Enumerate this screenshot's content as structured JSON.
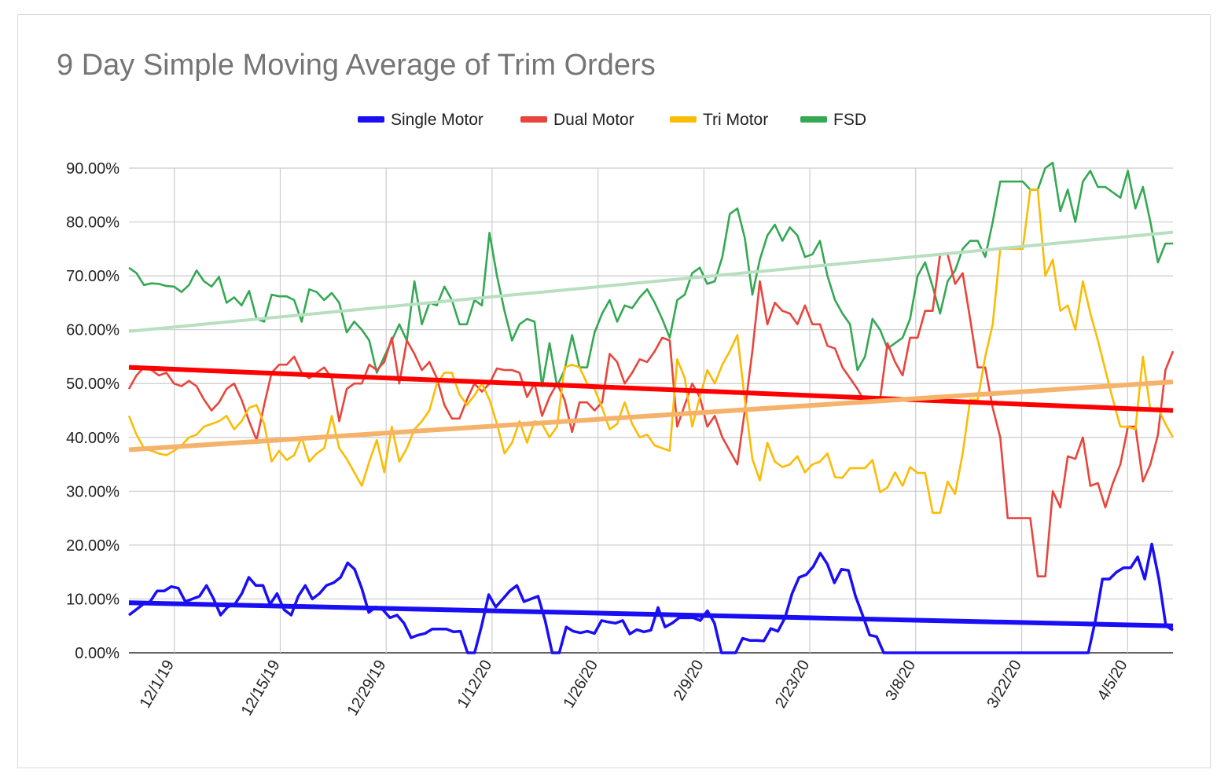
{
  "chart_data": {
    "type": "line",
    "title": "9 Day Simple Moving Average of Trim Orders",
    "xlabel": "",
    "ylabel": "",
    "ylim": [
      0,
      90
    ],
    "yticks": [
      "0.00%",
      "10.00%",
      "20.00%",
      "30.00%",
      "40.00%",
      "50.00%",
      "60.00%",
      "70.00%",
      "80.00%",
      "90.00%"
    ],
    "xticks": [
      "12/1/19",
      "12/15/19",
      "12/29/19",
      "1/12/20",
      "1/26/20",
      "2/9/20",
      "2/23/20",
      "3/8/20",
      "3/22/20",
      "4/5/20"
    ],
    "x_start": "11/25/19",
    "x_end": "4/11/20",
    "grid": true,
    "legend": "top",
    "series": [
      {
        "name": "Single Motor",
        "color": "#1a0ef5",
        "values": [
          7,
          8,
          9,
          9.5,
          11.5,
          11.5,
          12.3,
          12,
          9.5,
          10,
          10.5,
          12.5,
          10,
          7,
          8.5,
          9,
          11,
          14,
          12.5,
          12.5,
          9,
          11,
          8,
          7,
          10.5,
          12.5,
          10,
          11,
          12.5,
          13,
          14,
          16.7,
          15.5,
          12,
          7.5,
          8.5,
          8,
          6.5,
          7,
          5.5,
          2.8,
          3.3,
          3.6,
          4.4,
          4.4,
          4.4,
          3.9,
          4,
          0,
          0,
          5,
          10.8,
          8.5,
          10,
          11.5,
          12.5,
          9.5,
          10,
          10.5,
          6,
          0,
          0,
          4.8,
          4,
          3.7,
          4,
          3.6,
          6,
          5.7,
          5.5,
          6,
          3.5,
          4.3,
          3.9,
          4.2,
          8.4,
          4.8,
          5.5,
          6.5,
          6.5,
          6.5,
          6,
          7.8,
          5.5,
          0,
          0,
          0,
          2.7,
          2.3,
          2.3,
          2.2,
          4.5,
          4,
          6.5,
          11,
          14,
          14.5,
          16,
          18.5,
          16.5,
          13,
          15.5,
          15.3,
          10.5,
          7,
          3.3,
          3,
          0,
          0,
          0,
          0,
          0,
          0,
          0,
          0,
          0,
          0,
          0,
          0,
          0,
          0,
          0,
          0,
          0,
          0,
          0,
          0,
          0,
          0,
          0,
          0,
          0,
          0,
          0,
          0,
          0,
          0,
          6,
          13.7,
          13.7,
          15,
          15.8,
          15.8,
          17.8,
          13.7,
          20.2,
          13.7,
          5,
          4.2
        ]
      },
      {
        "name": "Dual Motor",
        "color": "#e8453c",
        "values": [
          49,
          51.5,
          53,
          52.5,
          51.5,
          52,
          50,
          49.5,
          50.5,
          49.5,
          47,
          45,
          46.5,
          49,
          50,
          47,
          43,
          39.5,
          46,
          52,
          53.5,
          53.5,
          55,
          52,
          51,
          52,
          53,
          51,
          43,
          49,
          50,
          50,
          53.5,
          52.5,
          54,
          58.5,
          50,
          58,
          55.5,
          52.5,
          54,
          51,
          46,
          43.5,
          43.5,
          47,
          50,
          48.5,
          50,
          52.8,
          52.5,
          52.5,
          52,
          47.5,
          50,
          44,
          47.5,
          50,
          47,
          41,
          46.5,
          46.5,
          45,
          46.5,
          55.5,
          54,
          50,
          52,
          54.5,
          54,
          56,
          58.5,
          58,
          42,
          46,
          50,
          47.5,
          42,
          44,
          40,
          37.5,
          35,
          45,
          56,
          69,
          61,
          65,
          63.5,
          63,
          61,
          64.5,
          61,
          61,
          57,
          56.5,
          53,
          51,
          49,
          46.5,
          47.5,
          47,
          57.5,
          54,
          51.5,
          58.5,
          58.5,
          63.5,
          63.5,
          74,
          74,
          68.5,
          70.5,
          62,
          53,
          53,
          45.5,
          40,
          25,
          25,
          25,
          25,
          14.2,
          14.2,
          30,
          27,
          36.5,
          36,
          40,
          31,
          31.5,
          27,
          31.5,
          35,
          42,
          42,
          31.8,
          35,
          40.5,
          52.5,
          56
        ]
      },
      {
        "name": "Tri Motor",
        "color": "#fbbc05",
        "values": [
          44,
          40.5,
          38,
          37.5,
          37,
          36.7,
          37.5,
          38.5,
          40,
          40.5,
          42,
          42.5,
          43,
          44,
          41.5,
          43,
          45.5,
          46,
          42.5,
          35.5,
          37.5,
          35.8,
          36.7,
          40,
          35.5,
          37,
          38,
          44,
          38,
          36,
          33.5,
          31,
          35.5,
          39.5,
          33.5,
          42,
          35.5,
          38,
          41.5,
          43,
          45,
          50,
          52,
          52,
          48,
          46,
          47.8,
          50,
          47,
          42.5,
          37,
          39,
          43,
          39,
          43,
          42.5,
          40,
          42,
          53,
          53.5,
          53,
          50,
          49,
          45.5,
          41.5,
          42.5,
          46.5,
          42.5,
          40,
          40.5,
          38.5,
          38,
          37.5,
          54.5,
          51,
          42,
          47.5,
          52.5,
          50,
          53.5,
          56,
          59,
          47,
          36,
          32,
          39,
          35.5,
          34.5,
          35,
          36.5,
          33.5,
          35,
          35.5,
          37,
          32.6,
          32.5,
          34.3,
          34.3,
          34.3,
          35.8,
          29.8,
          30.7,
          33.5,
          31,
          34.5,
          33.4,
          33.4,
          26,
          26,
          31.8,
          29.5,
          37,
          47,
          47,
          55,
          61,
          75,
          75,
          75,
          75,
          86,
          86,
          70,
          73,
          63.5,
          64.5,
          60,
          69,
          63,
          58,
          52.5,
          47,
          42,
          42,
          41.5,
          55,
          45,
          45.5,
          42.5,
          40
        ]
      },
      {
        "name": "FSD",
        "color": "#34a853",
        "values": [
          71.5,
          70.5,
          68.3,
          68.6,
          68.5,
          68.1,
          68,
          67,
          68.3,
          71,
          69,
          68,
          69.8,
          65,
          66,
          64.5,
          67.2,
          62,
          61.5,
          66.5,
          66.2,
          66.2,
          65.5,
          61.5,
          67.5,
          67,
          65.5,
          66.8,
          65,
          59.5,
          61.5,
          60,
          58,
          52,
          55,
          58,
          61,
          58,
          69,
          61,
          65,
          64.5,
          68,
          65.5,
          61,
          61,
          65.5,
          64.5,
          78,
          70,
          63.5,
          58,
          61,
          62,
          61.5,
          49.5,
          57.5,
          49.5,
          52.5,
          59,
          53,
          53,
          59.5,
          63,
          65.5,
          61.5,
          64.5,
          64,
          66,
          67.5,
          65,
          62,
          58.5,
          65.5,
          66.5,
          70.5,
          71.5,
          68.5,
          69,
          73.5,
          81.5,
          82.5,
          77,
          66.5,
          73,
          77.5,
          79.5,
          76.5,
          79,
          77.5,
          73.5,
          74,
          76.5,
          70,
          65.5,
          63,
          61,
          52.5,
          55,
          62,
          60,
          56.5,
          57.5,
          58.5,
          62,
          70,
          72.5,
          68,
          63,
          69,
          71,
          75,
          76.5,
          76.5,
          73.5,
          80,
          87.5,
          87.5,
          87.5,
          87.5,
          86,
          86,
          90,
          91,
          82,
          86,
          80,
          87.5,
          89.5,
          86.5,
          86.5,
          85.5,
          84.5,
          89.5,
          82.5,
          86.5,
          80,
          72.5,
          76,
          76
        ]
      },
      {
        "name": "",
        "color": "#1a0ef5",
        "trend": true,
        "values": [
          9.3,
          5.0
        ]
      },
      {
        "name": "",
        "color": "#fe0000",
        "trend": true,
        "values": [
          53.0,
          45.0
        ]
      },
      {
        "name": "",
        "color": "#f5b26b",
        "trend": true,
        "values": [
          37.7,
          50.3
        ]
      },
      {
        "name": "",
        "color": "#b7dfc0",
        "trend": true,
        "values": [
          59.7,
          78.1
        ]
      }
    ]
  }
}
